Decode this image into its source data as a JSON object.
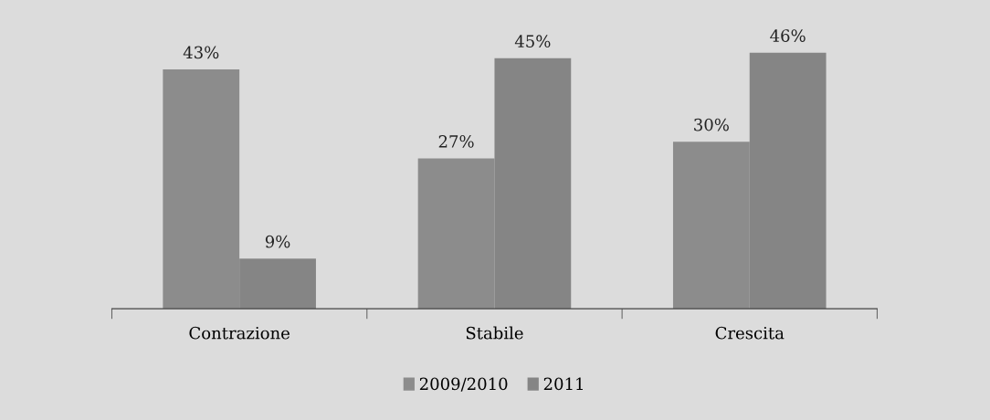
{
  "chart_data": {
    "type": "bar",
    "categories": [
      "Contrazione",
      "Stabile",
      "Crescita"
    ],
    "series": [
      {
        "name": "2009/2010",
        "color": "#8c8c8c",
        "values": [
          43,
          27,
          30
        ],
        "value_labels": [
          "43%",
          "27%",
          "30%"
        ]
      },
      {
        "name": "2011",
        "color": "#858585",
        "values": [
          9,
          45,
          46
        ],
        "value_labels": [
          "9%",
          "45%",
          "46%"
        ]
      }
    ],
    "legend": "bottom",
    "grid": false
  }
}
